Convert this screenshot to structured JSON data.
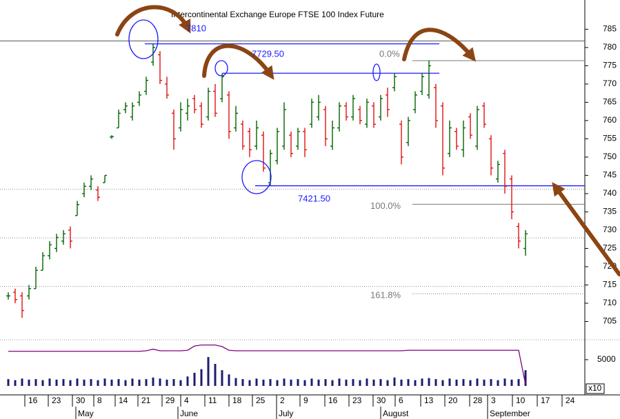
{
  "chart_data": {
    "type": "ohlc",
    "title": "Intercontinental Exchange Europe FTSE 100 Index Future",
    "up_color": "#006400",
    "down_color": "#e01010",
    "ylim": [
      700,
      793
    ],
    "yticks": [
      705,
      710,
      715,
      720,
      725,
      730,
      735,
      740,
      745,
      750,
      755,
      760,
      765,
      770,
      775,
      780,
      785
    ],
    "xlim": [
      -1.2,
      83.6
    ],
    "xticks": [
      {
        "value": 2.4,
        "label": "16"
      },
      {
        "value": 5.8,
        "label": "23"
      },
      {
        "value": 9.3,
        "label": "30"
      },
      {
        "value": 12.4,
        "label": "8"
      },
      {
        "value": 15.5,
        "label": "14"
      },
      {
        "value": 18.8,
        "label": "21"
      },
      {
        "value": 22.3,
        "label": "29"
      },
      {
        "value": 25,
        "label": "4"
      },
      {
        "value": 28.5,
        "label": "11"
      },
      {
        "value": 32,
        "label": "18"
      },
      {
        "value": 35.4,
        "label": "25"
      },
      {
        "value": 38.9,
        "label": "2"
      },
      {
        "value": 42.3,
        "label": "9"
      },
      {
        "value": 45.9,
        "label": "16"
      },
      {
        "value": 49.4,
        "label": "23"
      },
      {
        "value": 52.9,
        "label": "30"
      },
      {
        "value": 56.1,
        "label": "6"
      },
      {
        "value": 59.8,
        "label": "13"
      },
      {
        "value": 63.3,
        "label": "20"
      },
      {
        "value": 66.9,
        "label": "28"
      },
      {
        "value": 69.5,
        "label": "3"
      },
      {
        "value": 73.1,
        "label": "10"
      },
      {
        "value": 76.7,
        "label": "17"
      },
      {
        "value": 80.3,
        "label": "24"
      }
    ],
    "month_ticks": [
      {
        "value": 9.8,
        "label": "May"
      },
      {
        "value": 24.6,
        "label": "June"
      },
      {
        "value": 38.9,
        "label": "July"
      },
      {
        "value": 54.0,
        "label": "August"
      },
      {
        "value": 69.5,
        "label": "September"
      }
    ],
    "open": [
      712,
      713,
      712,
      712,
      714,
      719,
      723,
      725,
      727,
      730,
      734,
      740,
      742,
      741,
      743,
      755.5,
      758,
      763,
      761,
      765,
      768,
      776,
      778,
      770,
      762,
      758,
      762,
      766,
      764,
      761,
      768,
      766,
      767,
      758,
      759,
      757,
      753,
      756,
      743,
      749,
      753,
      756,
      753,
      757,
      759,
      761,
      763,
      753,
      758,
      764,
      761,
      763,
      759,
      764,
      761,
      767,
      769,
      759,
      754,
      763,
      768,
      767,
      769,
      764,
      751,
      757,
      752,
      761,
      753,
      764,
      755,
      744,
      751,
      744,
      731,
      725
    ],
    "high": [
      713,
      714,
      713,
      715,
      720,
      724,
      727,
      729,
      730,
      731,
      738,
      743,
      745,
      742,
      745,
      756,
      763,
      765,
      765,
      768,
      772,
      781,
      779,
      772,
      763,
      765,
      766,
      767,
      765,
      769,
      770,
      772.9,
      768,
      764,
      760,
      758,
      760,
      757,
      752,
      758,
      765,
      757,
      758,
      758,
      766,
      767,
      764,
      760,
      765,
      765,
      767,
      764,
      766,
      765,
      767,
      769,
      773,
      760,
      761,
      768,
      773,
      776.4,
      770,
      765,
      760,
      758,
      760,
      762,
      764,
      765,
      756,
      749,
      752,
      745,
      732,
      730
    ],
    "low": [
      711,
      710,
      706,
      711,
      714,
      719,
      722,
      724,
      726,
      725,
      734,
      739,
      741,
      738,
      743,
      755,
      758,
      762,
      760,
      764,
      767,
      775,
      770,
      766,
      752,
      757,
      760,
      762,
      758,
      760,
      761,
      765,
      755,
      757,
      752,
      750,
      752,
      746,
      742.2,
      748,
      752,
      750,
      752,
      750,
      758,
      760,
      753,
      752,
      757,
      760,
      760,
      759,
      758,
      758,
      760,
      761,
      768,
      748,
      753,
      762,
      767,
      766,
      758,
      745,
      750,
      752,
      750,
      755,
      752,
      758,
      745,
      743,
      740,
      733,
      725,
      723
    ],
    "close": [
      712,
      711,
      708,
      714,
      719,
      723,
      726,
      728,
      729,
      727,
      737,
      742,
      744,
      739,
      745,
      755.6,
      762,
      764,
      764,
      767,
      771,
      780,
      771,
      767,
      755,
      763,
      764,
      763,
      759,
      768,
      762,
      772,
      757,
      762,
      753,
      752,
      758,
      747,
      751,
      757,
      763,
      751,
      757,
      752,
      765,
      765,
      755,
      758,
      764,
      761,
      766,
      760,
      765,
      759,
      766,
      763,
      772,
      750,
      760,
      767,
      772,
      775,
      760,
      747,
      758,
      753,
      758,
      756,
      763,
      759,
      747,
      748,
      742,
      735,
      727,
      729
    ],
    "levels": [
      {
        "label": "7810",
        "value": 781
      },
      {
        "label": "7729.50",
        "value": 772.95
      },
      {
        "label": "7421.50",
        "value": 742.15
      }
    ],
    "fib_levels": [
      {
        "label": "0.0%",
        "price": 776.4
      },
      {
        "label": "100.0%",
        "price": 737.1
      },
      {
        "label": "161.8%",
        "price": 712.6
      }
    ],
    "reference_lines": [
      781.8,
      741.2,
      727.9,
      714.6
    ],
    "volume": {
      "color": "#1c1c6e",
      "line_color": "#800080",
      "ylim": [
        0,
        8800
      ],
      "yticks": [
        5000
      ],
      "scale_label": "x10",
      "values": [
        1300,
        1100,
        1400,
        1200,
        1300,
        1100,
        1400,
        1200,
        1300,
        1100,
        1400,
        1200,
        1300,
        1100,
        1400,
        1200,
        1300,
        1100,
        1400,
        1200,
        1300,
        1600,
        1400,
        1200,
        1300,
        1100,
        1800,
        2500,
        3200,
        5500,
        4200,
        3000,
        2200,
        1500,
        1300,
        1100,
        1400,
        1200,
        1300,
        1100,
        1400,
        1200,
        1300,
        1100,
        1400,
        1200,
        1300,
        1100,
        1400,
        1200,
        1300,
        1100,
        1400,
        1200,
        1300,
        1100,
        1600,
        1200,
        1300,
        1100,
        1400,
        1500,
        1300,
        1100,
        1400,
        1200,
        1300,
        1100,
        1400,
        1200,
        1300,
        1100,
        1400,
        1200,
        1300,
        3000
      ],
      "line": [
        6600,
        6600,
        6600,
        6600,
        6600,
        6600,
        6600,
        6600,
        6600,
        6600,
        6600,
        6600,
        6600,
        6600,
        6600,
        6600,
        6600,
        6600,
        6600,
        6600,
        6700,
        7000,
        6700,
        6700,
        6700,
        6700,
        6800,
        7600,
        7800,
        7800,
        7800,
        7500,
        6800,
        6700,
        6700,
        6700,
        6700,
        6700,
        6700,
        6700,
        6700,
        6700,
        6700,
        6700,
        6700,
        6700,
        6700,
        6700,
        6700,
        6700,
        6700,
        6700,
        6700,
        6700,
        6700,
        6700,
        6700,
        6700,
        6800,
        6800,
        6800,
        6800,
        6800,
        6800,
        6800,
        6800,
        6800,
        6800,
        6800,
        6800,
        6800,
        6800,
        6800,
        6800,
        6800,
        300
      ]
    }
  }
}
